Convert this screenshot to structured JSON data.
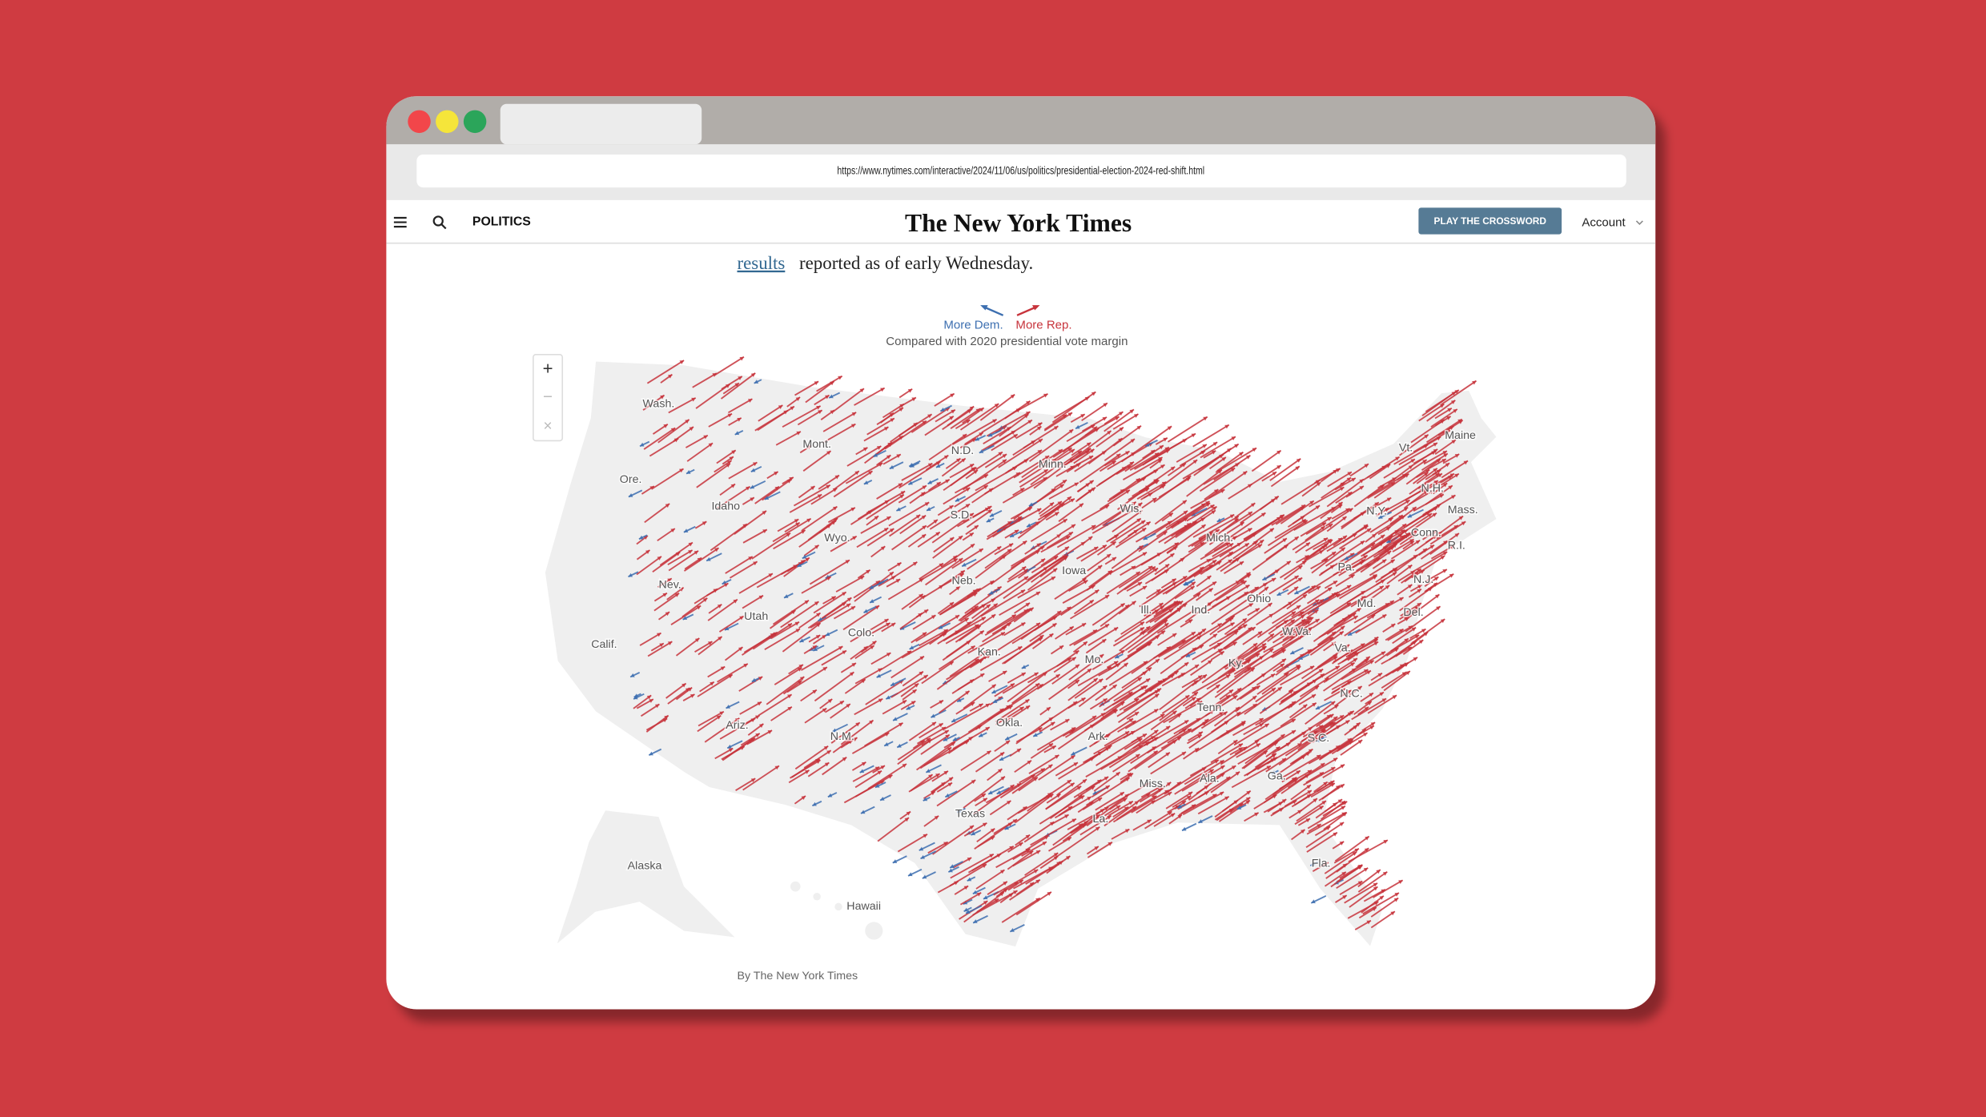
{
  "browser": {
    "url": "https://www.nytimes.com/interactive/2024/11/06/us/politics/presidential-election-2024-red-shift.html"
  },
  "nav": {
    "section": "POLITICS",
    "logo": "The New York Times",
    "button": "PLAY THE CROSSWORD",
    "account": "Account"
  },
  "article": {
    "link": "results",
    "text": "reported as of early Wednesday."
  },
  "legend": {
    "dem": "More Dem.",
    "rep": "More Rep.",
    "note": "Compared with 2020 presidential vote margin"
  },
  "map_controls": [
    "+",
    "−",
    "×"
  ],
  "state_labels": [
    "Wash.",
    "Mont.",
    "N.D.",
    "Minn.",
    "Ore.",
    "Idaho",
    "S.D.",
    "Wis.",
    "Maine",
    "Vt.",
    "N.H.",
    "N.Y.",
    "Mass.",
    "Mich.",
    "Conn.",
    "R.I.",
    "Wyo.",
    "Iowa",
    "Pa.",
    "Nev.",
    "Neb.",
    "N.J.",
    "Ohio",
    "Ill.",
    "Ind.",
    "Md.",
    "Del.",
    "Utah",
    "Colo.",
    "W.Va.",
    "Va.",
    "Calif.",
    "Kan.",
    "Mo.",
    "Ky.",
    "N.C.",
    "Tenn.",
    "Okla.",
    "Ariz.",
    "N.M.",
    "Ark.",
    "S.C.",
    "Ga.",
    "Ala.",
    "Miss.",
    "Texas",
    "La.",
    "Fla.",
    "Alaska",
    "Hawaii"
  ],
  "credit": "By The New York Times"
}
